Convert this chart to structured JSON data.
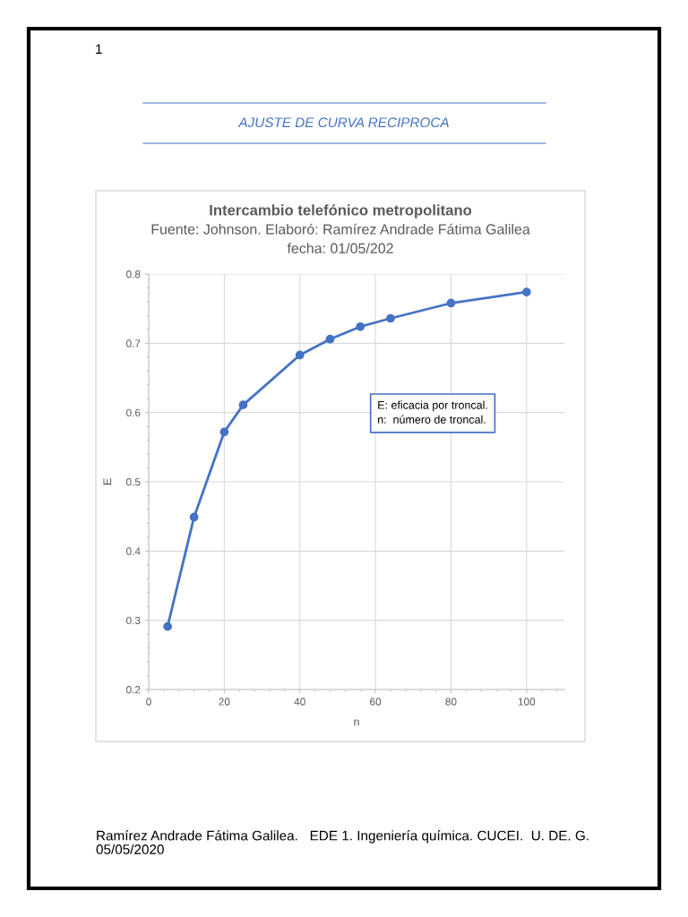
{
  "chart_data": {
    "type": "line",
    "title": "Intercambio telefónico metropolitano",
    "subtitle": "Fuente: Johnson. Elaboró: Ramírez Andrade Fátima Galilea\nfecha: 01/05/202",
    "xlabel": "n",
    "ylabel": "E",
    "x": [
      5,
      12,
      20,
      25,
      40,
      48,
      56,
      64,
      80,
      100
    ],
    "series": [
      {
        "color": "#4472c4",
        "values": [
          0.291,
          0.449,
          0.572,
          0.611,
          0.683,
          0.706,
          0.724,
          0.736,
          0.758,
          0.774
        ]
      }
    ],
    "xlim": [
      0,
      110
    ],
    "xticks": [
      0,
      20,
      40,
      60,
      80,
      100
    ],
    "ylim": [
      0.2,
      0.8
    ],
    "yticks": [
      0.2,
      0.3,
      0.4,
      0.5,
      0.6,
      0.7,
      0.8
    ],
    "grid": true,
    "marker": "circle",
    "line_style": "solid",
    "legend": false,
    "annotations": [
      "1",
      "AJUSTE DE CURVA RECIPROCA",
      "E: eficacia por troncal.\nn:  número de troncal.",
      "Ramírez Andrade Fátima Galilea.   EDE 1. Ingeniería química. CUCEI.  U. DE. G.\n05/05/2020"
    ]
  }
}
